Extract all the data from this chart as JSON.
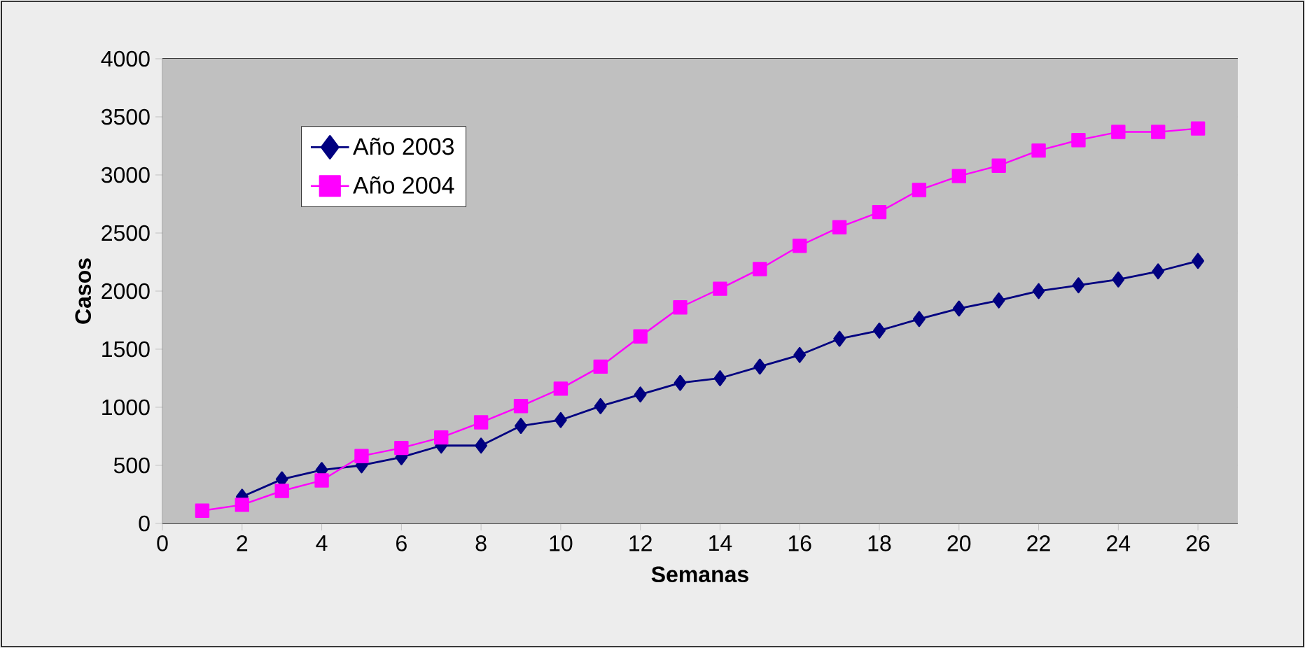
{
  "chart_data": {
    "type": "line",
    "xlabel": "Semanas",
    "ylabel": "Casos",
    "x": [
      1,
      2,
      3,
      4,
      5,
      6,
      7,
      8,
      9,
      10,
      11,
      12,
      13,
      14,
      15,
      16,
      17,
      18,
      19,
      20,
      21,
      22,
      23,
      24,
      25,
      26
    ],
    "series": [
      {
        "name": "Año 2003",
        "color": "#000080",
        "marker": "diamond",
        "values": [
          null,
          230,
          380,
          460,
          500,
          570,
          670,
          670,
          840,
          890,
          1010,
          1110,
          1210,
          1250,
          1350,
          1450,
          1590,
          1660,
          1760,
          1850,
          1920,
          2000,
          2050,
          2100,
          2170,
          2260
        ]
      },
      {
        "name": "Año 2004",
        "color": "#ff00ff",
        "marker": "square",
        "values": [
          110,
          160,
          280,
          370,
          580,
          650,
          740,
          870,
          1010,
          1160,
          1350,
          1610,
          1860,
          2020,
          2190,
          2390,
          2550,
          2680,
          2870,
          2990,
          3080,
          3210,
          3300,
          3370,
          3370,
          3400
        ]
      }
    ],
    "xlim": [
      0,
      27
    ],
    "xticks": [
      0,
      2,
      4,
      6,
      8,
      10,
      12,
      14,
      16,
      18,
      20,
      22,
      24,
      26
    ],
    "ylim": [
      0,
      4000
    ],
    "yticks": [
      0,
      500,
      1000,
      1500,
      2000,
      2500,
      3000,
      3500,
      4000
    ],
    "grid": "y",
    "legend": "top left",
    "line_style": "solid"
  }
}
